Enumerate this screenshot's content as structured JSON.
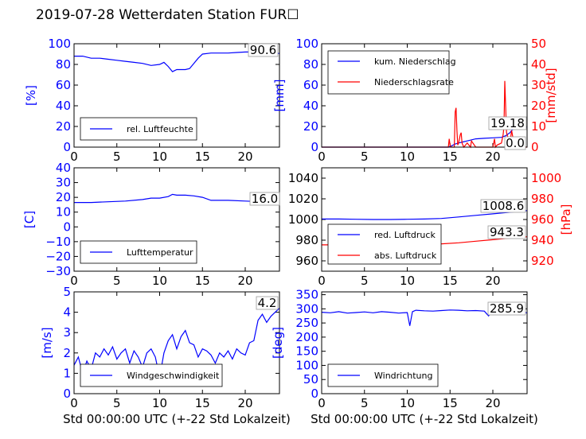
{
  "title": "2019-07-28 Wetterdaten Station FUR☐",
  "xlabel": "Std 00:00:00 UTC (+-22 Std Lokalzeit)",
  "colors": {
    "primary": "#0000ff",
    "secondary": "#ff0000",
    "axis": "#000000"
  },
  "chart_data": [
    {
      "id": "humidity",
      "type": "line",
      "ylabel": "[%]",
      "xlim": [
        0,
        24
      ],
      "ylim": [
        0,
        100
      ],
      "xticks": [
        "0",
        "5",
        "10",
        "15",
        "20"
      ],
      "yticks": [
        "0",
        "20",
        "40",
        "60",
        "80",
        "100"
      ],
      "legend": [
        "rel. Luftfeuchte"
      ],
      "legend_position": "lower-left",
      "annotations": [
        "90.6"
      ],
      "series": [
        {
          "name": "rel. Luftfeuchte",
          "x": [
            0,
            1,
            2,
            3,
            4,
            5,
            6,
            7,
            8,
            9,
            10,
            10.5,
            11,
            11.5,
            12,
            12.5,
            13,
            13.5,
            14,
            14.5,
            15,
            16,
            17,
            18,
            19,
            20,
            21,
            22,
            23,
            24
          ],
          "y": [
            88,
            88,
            86,
            86,
            85,
            84,
            83,
            82,
            81,
            79,
            80,
            82,
            78,
            73,
            75,
            75,
            75,
            76,
            81,
            86,
            90,
            91,
            91,
            91,
            91.5,
            92,
            92,
            91.5,
            91,
            90.6
          ]
        }
      ]
    },
    {
      "id": "rain",
      "type": "line",
      "ylabel": "[mm]",
      "y2label": "[mm/std]",
      "xlim": [
        0,
        24
      ],
      "ylim": [
        0,
        100
      ],
      "y2lim": [
        0,
        50
      ],
      "xticks": [
        "0",
        "5",
        "10",
        "15",
        "20"
      ],
      "yticks": [
        "0",
        "20",
        "40",
        "60",
        "80",
        "100"
      ],
      "y2ticks": [
        "0",
        "10",
        "20",
        "30",
        "40",
        "50"
      ],
      "legend": [
        "kum. Niederschlag",
        "Niederschlagsrate"
      ],
      "legend_position": "upper-left",
      "annotations": [
        "19.18",
        "0.0"
      ],
      "series": [
        {
          "name": "kum. Niederschlag",
          "axis": "left",
          "x": [
            0,
            14.8,
            15,
            15.6,
            16,
            16.5,
            17,
            18,
            19,
            20,
            21,
            21.5,
            22,
            22.3,
            23,
            24
          ],
          "y": [
            0,
            0,
            0.5,
            3,
            4,
            5,
            6,
            8,
            8.5,
            9,
            9.5,
            11,
            14,
            17,
            18.5,
            19.18
          ]
        },
        {
          "name": "Niederschlagsrate",
          "axis": "right",
          "x": [
            0,
            14.8,
            14.9,
            15.0,
            15.1,
            15.5,
            15.6,
            15.7,
            15.8,
            15.9,
            16.0,
            16.2,
            16.3,
            16.4,
            16.6,
            17.0,
            17.4,
            17.5,
            18.0,
            20.0,
            20.2,
            20.3,
            20.5,
            21.0,
            21.2,
            21.3,
            21.4,
            21.6,
            21.8,
            22.0,
            22.2,
            22.5,
            23.0,
            24.0
          ],
          "y": [
            0,
            0,
            4,
            1,
            0,
            0,
            17,
            19,
            8,
            1,
            2,
            6,
            7,
            2,
            0,
            2,
            0,
            3,
            0,
            0,
            4,
            0,
            1,
            2,
            6,
            10,
            32,
            7,
            4,
            2,
            8,
            1,
            0,
            0
          ]
        }
      ]
    },
    {
      "id": "temperature",
      "type": "line",
      "ylabel": "[C]",
      "xlim": [
        0,
        24
      ],
      "ylim": [
        -30,
        40
      ],
      "xticks": [
        "0",
        "5",
        "10",
        "15",
        "20"
      ],
      "yticks": [
        "−30",
        "−20",
        "−10",
        "0",
        "10",
        "20",
        "30",
        "40"
      ],
      "legend": [
        "Lufttemperatur"
      ],
      "legend_position": "lower-left",
      "annotations": [
        "16.0"
      ],
      "series": [
        {
          "name": "Lufttemperatur",
          "x": [
            0,
            2,
            4,
            6,
            8,
            9,
            10,
            11,
            11.5,
            12,
            13,
            14,
            15,
            16,
            18,
            20,
            22,
            24
          ],
          "y": [
            16.5,
            16.5,
            17,
            17.5,
            18.5,
            19.5,
            19.5,
            20.5,
            22,
            21.5,
            21.5,
            21,
            20,
            18,
            18,
            17.5,
            17,
            16.0
          ]
        }
      ]
    },
    {
      "id": "pressure",
      "type": "line",
      "ylabel": "",
      "y2label": "[hPa]",
      "xlim": [
        0,
        24
      ],
      "ylim": [
        950,
        1050
      ],
      "y2lim": [
        910,
        1010
      ],
      "xticks": [
        "0",
        "5",
        "10",
        "15",
        "20"
      ],
      "yticks": [
        "960",
        "980",
        "1000",
        "1020",
        "1040"
      ],
      "y2ticks": [
        "920",
        "940",
        "960",
        "980",
        "1000"
      ],
      "legend": [
        "red. Luftdruck",
        "abs. Luftdruck"
      ],
      "legend_position": "lower-left",
      "annotations": [
        "1008.6",
        "943.3"
      ],
      "series": [
        {
          "name": "red. Luftdruck",
          "axis": "left",
          "x": [
            0,
            2,
            4,
            6,
            8,
            10,
            12,
            14,
            16,
            18,
            20,
            22,
            24
          ],
          "y": [
            1000.5,
            1000.5,
            1000.2,
            1000,
            1000,
            1000.2,
            1000.5,
            1001,
            1002.5,
            1004,
            1005.5,
            1007,
            1008.6
          ]
        },
        {
          "name": "abs. Luftdruck",
          "axis": "right",
          "x": [
            0,
            2,
            4,
            6,
            8,
            10,
            12,
            14,
            16,
            18,
            20,
            22,
            24
          ],
          "y": [
            935.5,
            935.5,
            935.5,
            935.6,
            935.6,
            935.8,
            936,
            936.5,
            937.5,
            939,
            940.5,
            942,
            943.3
          ]
        }
      ]
    },
    {
      "id": "windspeed",
      "type": "line",
      "ylabel": "[m/s]",
      "xlim": [
        0,
        24
      ],
      "ylim": [
        0,
        5
      ],
      "xticks": [
        "0",
        "5",
        "10",
        "15",
        "20"
      ],
      "yticks": [
        "0",
        "1",
        "2",
        "3",
        "4",
        "5"
      ],
      "legend": [
        "Windgeschwindigkeit"
      ],
      "legend_position": "lower-center",
      "annotations": [
        "4.2"
      ],
      "series": [
        {
          "name": "Windgeschwindigkeit",
          "x": [
            0,
            0.5,
            1,
            1.5,
            2,
            2.5,
            3,
            3.5,
            4,
            4.5,
            5,
            5.5,
            6,
            6.5,
            7,
            7.5,
            8,
            8.5,
            9,
            9.5,
            10,
            10.5,
            11,
            11.5,
            12,
            12.5,
            13,
            13.5,
            14,
            14.5,
            15,
            15.5,
            16,
            16.5,
            17,
            17.5,
            18,
            18.5,
            19,
            19.5,
            20,
            20.5,
            21,
            21.5,
            22,
            22.5,
            23,
            23.5,
            24
          ],
          "y": [
            1.4,
            1.8,
            1.0,
            1.6,
            1.2,
            2.0,
            1.8,
            2.2,
            1.9,
            2.3,
            1.7,
            2.0,
            2.2,
            1.5,
            2.1,
            1.8,
            1.3,
            2.0,
            2.2,
            1.8,
            0.8,
            2.0,
            2.6,
            2.9,
            2.2,
            2.8,
            3.1,
            2.5,
            2.4,
            1.8,
            2.2,
            2.1,
            1.9,
            1.5,
            2.0,
            1.8,
            2.1,
            1.7,
            2.2,
            2.0,
            1.9,
            2.5,
            2.6,
            3.6,
            3.9,
            3.5,
            3.8,
            4.0,
            4.2
          ]
        }
      ]
    },
    {
      "id": "winddir",
      "type": "line",
      "ylabel": "[deg]",
      "xlim": [
        0,
        24
      ],
      "ylim": [
        0,
        360
      ],
      "xticks": [
        "0",
        "5",
        "10",
        "15",
        "20"
      ],
      "yticks": [
        "0",
        "50",
        "100",
        "150",
        "200",
        "250",
        "300",
        "350"
      ],
      "legend": [
        "Windrichtung"
      ],
      "legend_position": "lower-left",
      "annotations": [
        "285.9"
      ],
      "series": [
        {
          "name": "Windrichtung",
          "x": [
            0,
            1,
            2,
            3,
            4,
            5,
            6,
            7,
            8,
            9,
            10,
            10.3,
            10.6,
            11,
            12,
            13,
            14,
            15,
            16,
            17,
            18,
            19,
            19.5,
            20,
            21,
            22,
            23,
            24
          ],
          "y": [
            288,
            286,
            290,
            285,
            287,
            289,
            286,
            290,
            288,
            285,
            287,
            240,
            290,
            295,
            293,
            292,
            294,
            296,
            295,
            293,
            294,
            292,
            275,
            292,
            294,
            290,
            288,
            285.9
          ]
        }
      ]
    }
  ]
}
